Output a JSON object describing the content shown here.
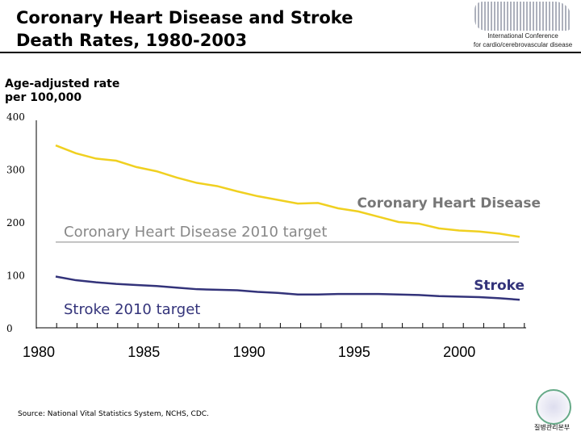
{
  "title_line1": "Coronary Heart Disease and Stroke",
  "title_line2": "Death Rates, 1980-2003",
  "logo_text_1": "International Conference",
  "logo_text_2": "for cardio/cerebrovascular disease",
  "source": "Source: National Vital Statistics System, NCHS, CDC.",
  "seal_text": "질병관리본부",
  "chart_data": {
    "type": "line",
    "ylabel_line1": "Age-adjusted rate",
    "ylabel_line2": "per 100,000",
    "ylim": [
      0,
      400
    ],
    "yticks": [
      "0",
      "100",
      "200",
      "300",
      "400"
    ],
    "xticks": [
      "1980",
      "1985",
      "1990",
      "1995",
      "2000"
    ],
    "x": [
      1980,
      1981,
      1982,
      1983,
      1984,
      1985,
      1986,
      1987,
      1988,
      1989,
      1990,
      1991,
      1992,
      1993,
      1994,
      1995,
      1996,
      1997,
      1998,
      1999,
      2000,
      2001,
      2002,
      2003
    ],
    "series": [
      {
        "name": "Coronary Heart Disease",
        "color": "#f0d020",
        "values": [
          345,
          330,
          320,
          316,
          304,
          296,
          284,
          274,
          268,
          258,
          249,
          242,
          235,
          236,
          226,
          220,
          210,
          200,
          197,
          188,
          184,
          182,
          178,
          172
        ]
      },
      {
        "name": "Stroke",
        "color": "#33337a",
        "values": [
          97,
          90,
          86,
          83,
          81,
          79,
          76,
          73,
          72,
          71,
          68,
          66,
          63,
          63,
          64,
          64,
          64,
          63,
          62,
          60,
          59,
          58,
          56,
          53
        ]
      }
    ],
    "targets": [
      {
        "label": "Coronary Heart Disease 2010 target",
        "value": 162,
        "color": "#888888"
      },
      {
        "label": "Stroke 2010 target",
        "value": 50,
        "color": "#33337a"
      }
    ]
  }
}
